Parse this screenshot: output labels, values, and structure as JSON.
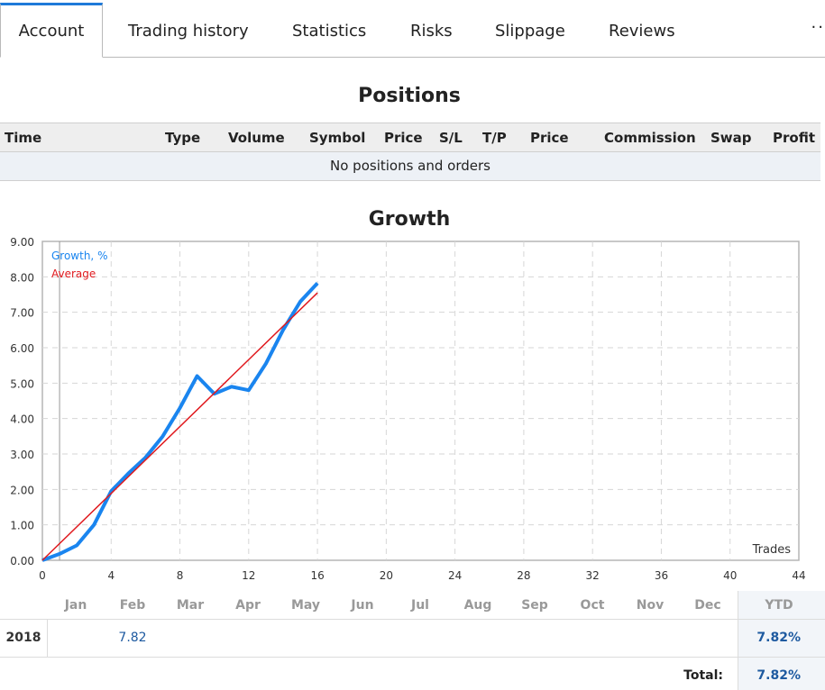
{
  "tabs": [
    {
      "label": "Account",
      "active": true
    },
    {
      "label": "Trading history"
    },
    {
      "label": "Statistics"
    },
    {
      "label": "Risks"
    },
    {
      "label": "Slippage"
    },
    {
      "label": "Reviews"
    }
  ],
  "more_label": "··",
  "positions": {
    "title": "Positions",
    "columns": [
      "Time",
      "Type",
      "Volume",
      "Symbol",
      "Price",
      "S/L",
      "T/P",
      "Price",
      "Commission",
      "Swap",
      "Profit"
    ],
    "empty_text": "No positions and orders"
  },
  "growth": {
    "title": "Growth"
  },
  "chart_data": {
    "type": "line",
    "title": "Growth",
    "xlabel": "Trades",
    "ylabel": "",
    "xlim": [
      0,
      44
    ],
    "ylim": [
      0,
      9
    ],
    "x_ticks": [
      0,
      4,
      8,
      12,
      16,
      20,
      24,
      28,
      32,
      36,
      40,
      44
    ],
    "y_ticks": [
      "0.00",
      "1.00",
      "2.00",
      "3.00",
      "4.00",
      "5.00",
      "6.00",
      "7.00",
      "8.00",
      "9.00"
    ],
    "grid": true,
    "legend_position": "top-left",
    "series": [
      {
        "name": "Growth, %",
        "color": "#1a85ef",
        "x": [
          0,
          1,
          2,
          3,
          4,
          5,
          6,
          7,
          8,
          9,
          10,
          11,
          12,
          13,
          14,
          15,
          16
        ],
        "y": [
          0.0,
          0.18,
          0.42,
          1.0,
          1.95,
          2.45,
          2.9,
          3.5,
          4.3,
          5.2,
          4.7,
          4.9,
          4.8,
          5.55,
          6.5,
          7.3,
          7.82
        ]
      },
      {
        "name": "Average",
        "color": "#e0191e",
        "x": [
          0,
          16
        ],
        "y": [
          0.0,
          7.55
        ]
      }
    ]
  },
  "monthly": {
    "months": [
      "Jan",
      "Feb",
      "Mar",
      "Apr",
      "May",
      "Jun",
      "Jul",
      "Aug",
      "Sep",
      "Oct",
      "Nov",
      "Dec"
    ],
    "ytd_label": "YTD",
    "rows": [
      {
        "year": "2018",
        "values": [
          "",
          "7.82",
          "",
          "",
          "",
          "",
          "",
          "",
          "",
          "",
          "",
          ""
        ],
        "ytd": "7.82%"
      }
    ],
    "total_label": "Total:",
    "total_value": "7.82%"
  }
}
